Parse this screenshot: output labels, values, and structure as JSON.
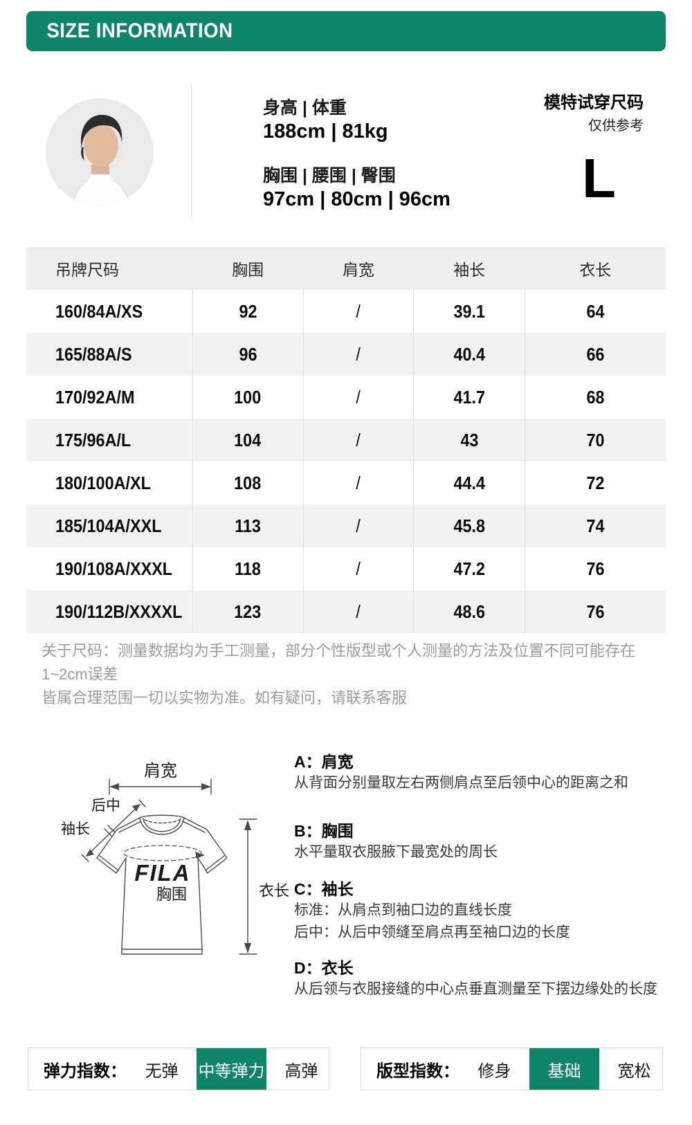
{
  "colors": {
    "accent": "#0E8468",
    "table_header_bg": "#EFEFEF",
    "row_alt_bg": "#F2F2F2",
    "note_gray": "#9B9B9B"
  },
  "header": {
    "title": "SIZE INFORMATION"
  },
  "model": {
    "stats": [
      {
        "label": "身高 | 体重",
        "value": "188cm | 81kg"
      },
      {
        "label": "胸围 | 腰围 | 臀围",
        "value": "97cm | 80cm | 96cm"
      }
    ],
    "fit_title": "模特试穿尺码",
    "fit_note": "仅供参考",
    "fit_size": "L"
  },
  "size_table": {
    "columns": [
      "吊牌尺码",
      "胸围",
      "肩宽",
      "袖长",
      "衣长"
    ],
    "rows": [
      [
        "160/84A/XS",
        "92",
        "/",
        "39.1",
        "64"
      ],
      [
        "165/88A/S",
        "96",
        "/",
        "40.4",
        "66"
      ],
      [
        "170/92A/M",
        "100",
        "/",
        "41.7",
        "68"
      ],
      [
        "175/96A/L",
        "104",
        "/",
        "43",
        "70"
      ],
      [
        "180/100A/XL",
        "108",
        "/",
        "44.4",
        "72"
      ],
      [
        "185/104A/XXL",
        "113",
        "/",
        "45.8",
        "74"
      ],
      [
        "190/108A/XXXL",
        "118",
        "/",
        "47.2",
        "76"
      ],
      [
        "190/112B/XXXXL",
        "123",
        "/",
        "48.6",
        "76"
      ]
    ]
  },
  "note": {
    "line1": "关于尺码：测量数据均为手工测量，部分个性版型或个人测量的方法及位置不同可能存在1~2cm误差",
    "line2": "皆属合理范围一切以实物为准。如有疑问，请联系客服"
  },
  "diagram": {
    "logo": "FILA",
    "labels": {
      "shoulder": "肩宽",
      "back_center": "后中",
      "sleeve": "袖长",
      "chest": "胸围",
      "length": "衣长"
    },
    "explanations": [
      {
        "title": "A：肩宽",
        "lines": [
          "从背面分别量取左右两侧肩点至后领中心的距离之和"
        ]
      },
      {
        "title": "B：胸围",
        "lines": [
          "水平量取衣服腋下最宽处的周长"
        ]
      },
      {
        "title": "C：袖长",
        "lines": [
          "标准：从肩点到袖口边的直线长度",
          "后中：从后中领缝至肩点再至袖口边的长度"
        ]
      },
      {
        "title": "D：衣长",
        "lines": [
          "从后领与衣服接缝的中心点垂直测量至下摆边缘处的长度"
        ]
      }
    ]
  },
  "indexes": {
    "elasticity": {
      "label": "弹力指数：",
      "options": [
        "无弹",
        "中等弹力",
        "高弹"
      ],
      "selected": "中等弹力"
    },
    "fit": {
      "label": "版型指数：",
      "options": [
        "修身",
        "基础",
        "宽松"
      ],
      "selected": "基础"
    }
  }
}
